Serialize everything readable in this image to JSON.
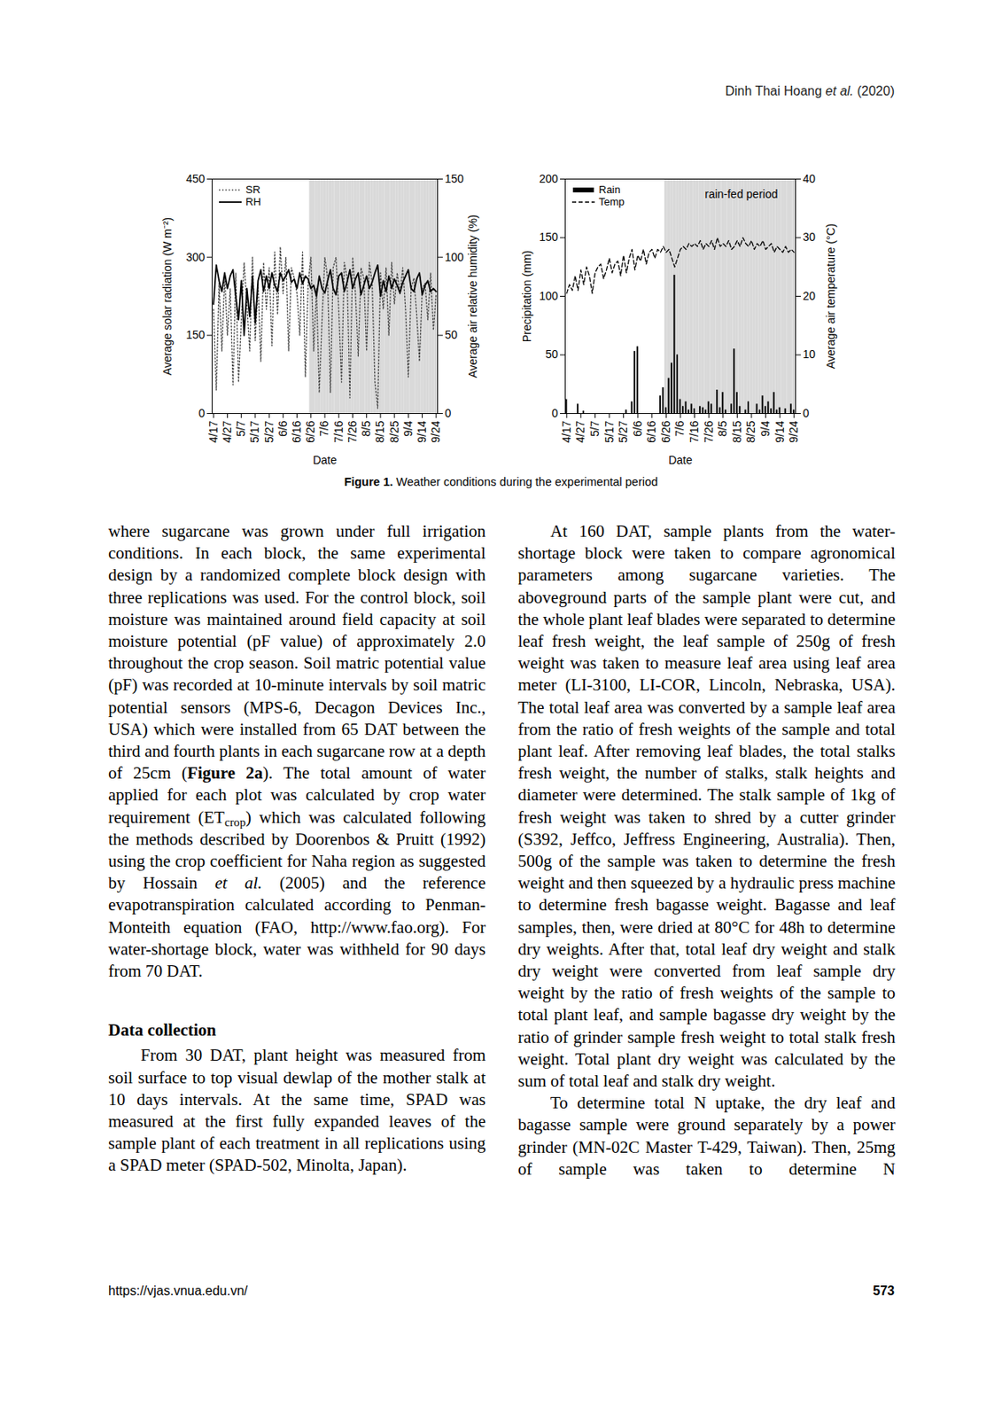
{
  "header": [
    "Dinh Thai Hoang ",
    {
      "italic": "et al."
    },
    " (2020)"
  ],
  "chart_data": [
    {
      "type": "line",
      "x_label": "Date",
      "y_label": "Average solar radiation (W m⁻²)",
      "y2_label": "Average air relative humidity (%)",
      "categories": [
        "4/17",
        null,
        null,
        null,
        null,
        "4/27",
        null,
        null,
        null,
        null,
        "5/7",
        null,
        null,
        null,
        null,
        "5/17",
        null,
        null,
        null,
        null,
        "5/27",
        null,
        null,
        null,
        null,
        "6/6",
        null,
        null,
        null,
        null,
        "6/16",
        null,
        null,
        null,
        null,
        "6/26",
        null,
        null,
        null,
        null,
        "7/6",
        null,
        null,
        null,
        null,
        "7/16",
        null,
        null,
        null,
        null,
        "7/26",
        null,
        null,
        null,
        null,
        "8/5",
        null,
        null,
        null,
        null,
        "8/15",
        null,
        null,
        null,
        null,
        "8/25",
        null,
        null,
        null,
        null,
        "9/4",
        null,
        null,
        null,
        null,
        "9/14",
        null,
        null,
        null,
        null,
        "9/24"
      ],
      "ylim": [
        0,
        450
      ],
      "yticks": [
        0,
        150,
        300,
        450
      ],
      "y2lim": [
        0,
        150
      ],
      "y2ticks": [
        0,
        50,
        100,
        150
      ],
      "legend": "top-left",
      "shaded_region": {
        "from": "6/26",
        "to": "9/24"
      },
      "annotations": [],
      "series": [
        {
          "name": "SR",
          "type": "line",
          "color": "#444444",
          "line_style": "dotted",
          "values": [
            200,
            45,
            250,
            120,
            265,
            150,
            240,
            55,
            270,
            60,
            180,
            290,
            210,
            120,
            300,
            140,
            250,
            100,
            290,
            200,
            280,
            130,
            310,
            190,
            320,
            230,
            300,
            120,
            280,
            260,
            230,
            150,
            310,
            70,
            250,
            300,
            120,
            240,
            40,
            180,
            300,
            260,
            40,
            280,
            300,
            200,
            60,
            290,
            260,
            30,
            300,
            230,
            110,
            280,
            260,
            120,
            290,
            250,
            60,
            10,
            270,
            200,
            280,
            150,
            290,
            210,
            270,
            230,
            280,
            200,
            70,
            240,
            260,
            190,
            100,
            240,
            250,
            180,
            270,
            160,
            230
          ]
        },
        {
          "name": "RH",
          "type": "line",
          "color": "#000000",
          "line_style": "solid",
          "axis": "y2",
          "values": [
            70,
            95,
            85,
            78,
            90,
            80,
            88,
            92,
            75,
            60,
            85,
            50,
            80,
            62,
            88,
            58,
            85,
            92,
            78,
            88,
            80,
            90,
            82,
            78,
            90,
            85,
            88,
            92,
            84,
            86,
            80,
            90,
            83,
            88,
            86,
            80,
            82,
            75,
            88,
            80,
            77,
            85,
            92,
            80,
            76,
            88,
            90,
            78,
            84,
            92,
            80,
            86,
            90,
            76,
            82,
            88,
            80,
            84,
            90,
            95,
            75,
            85,
            78,
            88,
            80,
            86,
            82,
            77,
            84,
            88,
            92,
            80,
            78,
            86,
            90,
            76,
            82,
            85,
            78,
            80,
            78
          ]
        }
      ]
    },
    {
      "type": "bar",
      "x_label": "Date",
      "y_label": "Precipitation (mm)",
      "y2_label": "Average air temperature (°C)",
      "categories": [
        "4/17",
        null,
        null,
        null,
        null,
        "4/27",
        null,
        null,
        null,
        null,
        "5/7",
        null,
        null,
        null,
        null,
        "5/17",
        null,
        null,
        null,
        null,
        "5/27",
        null,
        null,
        null,
        null,
        "6/6",
        null,
        null,
        null,
        null,
        "6/16",
        null,
        null,
        null,
        null,
        "6/26",
        null,
        null,
        null,
        null,
        "7/6",
        null,
        null,
        null,
        null,
        "7/16",
        null,
        null,
        null,
        null,
        "7/26",
        null,
        null,
        null,
        null,
        "8/5",
        null,
        null,
        null,
        null,
        "8/15",
        null,
        null,
        null,
        null,
        "8/25",
        null,
        null,
        null,
        null,
        "9/4",
        null,
        null,
        null,
        null,
        "9/14",
        null,
        null,
        null,
        null,
        "9/24"
      ],
      "ylim": [
        0,
        200
      ],
      "yticks": [
        0,
        50,
        100,
        150,
        200
      ],
      "y2lim": [
        0,
        40
      ],
      "y2ticks": [
        0,
        10,
        20,
        30,
        40
      ],
      "legend": "top-left",
      "shaded_region": {
        "from": "6/26",
        "to": "9/24"
      },
      "annotations": [
        "rain-fed period"
      ],
      "series": [
        {
          "name": "Rain",
          "type": "bar",
          "color": "#000000",
          "values": [
            12,
            0,
            0,
            0,
            8,
            0,
            2,
            0,
            0,
            0,
            0,
            0,
            0,
            0,
            0,
            0,
            0,
            0,
            0,
            0,
            0,
            3,
            0,
            10,
            53,
            57,
            0,
            0,
            0,
            0,
            0,
            0,
            0,
            15,
            22,
            5,
            30,
            43,
            118,
            50,
            12,
            6,
            10,
            3,
            8,
            4,
            0,
            6,
            5,
            3,
            10,
            8,
            0,
            20,
            5,
            18,
            3,
            0,
            8,
            55,
            18,
            6,
            0,
            3,
            10,
            0,
            0,
            8,
            3,
            15,
            6,
            10,
            4,
            18,
            3,
            5,
            0,
            4,
            0,
            8,
            3
          ]
        },
        {
          "name": "Temp",
          "type": "line",
          "color": "#000000",
          "line_style": "dashed",
          "axis": "y2",
          "values": [
            20.5,
            22,
            21,
            23.5,
            21,
            24.5,
            22,
            25,
            23.5,
            20.5,
            24,
            25,
            25.5,
            23,
            24.5,
            26.5,
            24,
            25.5,
            26,
            23.5,
            27,
            24,
            26.5,
            28,
            24.5,
            27,
            26,
            28,
            25.5,
            27.5,
            28,
            26.5,
            28,
            27.5,
            28.5,
            27.5,
            28,
            26.5,
            25,
            26.5,
            28,
            28.5,
            28,
            29,
            28.5,
            29,
            28.5,
            29.5,
            28,
            29,
            28.5,
            29.5,
            28,
            30,
            28.5,
            29,
            28.5,
            29.5,
            28,
            28.5,
            29.5,
            28.5,
            30,
            29,
            28.5,
            29.5,
            28,
            29,
            28.5,
            29.5,
            28,
            28.5,
            29,
            27.5,
            28.5,
            28,
            27.5,
            28.5,
            27.5,
            28,
            27.5
          ]
        }
      ]
    }
  ],
  "caption": [
    {
      "bold": "Figure 1."
    },
    " Weather conditions during the experimental period"
  ],
  "columns": [
    [
      {
        "type": "continuation",
        "runs": [
          "where sugarcane was grown under full irrigation conditions. In each block, the same experimental design by a randomized complete block design with three replications was used. For the control block, soil moisture was maintained around field capacity at soil moisture potential (pF value) of approximately 2.0 throughout the crop season. Soil matric potential value (pF) was recorded at 10-minute intervals by soil matric potential sensors (MPS-6, Decagon Devices Inc., USA) which were installed from 65 DAT between the third and fourth plants in each sugarcane row at a depth of 25cm (",
          {
            "bold": "Figure 2a"
          },
          "). The total amount of water applied for each plot was calculated by crop water requirement (ET",
          {
            "sub": "crop"
          },
          ") which was calculated following the methods described by Doorenbos & Pruitt (1992) using the crop coefficient for Naha region as suggested by Hossain ",
          {
            "italic": "et al."
          },
          " (2005) and the reference evapotranspiration calculated according to Penman-Monteith equation (FAO, http://www.fao.org). For water-shortage block, water was withheld for 90 days from 70 DAT."
        ]
      },
      {
        "type": "heading",
        "runs": [
          "Data collection"
        ]
      },
      {
        "type": "paragraph",
        "runs": [
          "From 30 DAT, plant height was measured from soil surface to top visual dewlap of the mother stalk at 10 days intervals. At the same time, SPAD was measured at the first fully expanded leaves of the sample plant of each treatment in all replications using a SPAD meter (SPAD-502, Minolta, Japan)."
        ]
      }
    ],
    [
      {
        "type": "paragraph",
        "runs": [
          "At 160 DAT, sample plants from the water-shortage block were taken to compare agronomical parameters among sugarcane varieties. The aboveground parts of the sample plant were cut, and the whole plant leaf blades were separated to determine leaf fresh weight, the leaf sample of 250g of fresh weight was taken to measure leaf area using leaf area meter (LI-3100, LI-COR, Lincoln, Nebraska, USA). The total leaf area was converted by a sample leaf area from the ratio of fresh weights of the sample and total plant leaf. After removing leaf blades, the total stalks fresh weight, the number of stalks, stalk heights and diameter were determined. The stalk sample of 1kg of fresh weight was taken to shred by a cutter grinder (S392, Jeffco, Jeffress Engineering, Australia). Then, 500g of the sample was taken to determine the fresh weight and then squeezed by a hydraulic press machine to determine fresh bagasse weight. Bagasse and leaf samples, then, were dried at 80°C for 48h to determine dry weights. After that, total leaf dry weight and stalk dry weight were converted from leaf sample dry weight by the ratio of fresh weights of the sample to total plant leaf, and sample bagasse dry weight by the ratio of grinder sample fresh weight to total stalk fresh weight. Total plant dry weight was calculated by the sum of total leaf and stalk dry weight."
        ]
      },
      {
        "type": "paragraph",
        "runs": [
          "To determine total N uptake, the dry leaf and bagasse sample were ground separately by a power grinder (MN-02C Master T-429, Taiwan). Then, 25mg of sample was taken to determine N"
        ]
      }
    ]
  ],
  "footer": {
    "url": "https://vjas.vnua.edu.vn/",
    "page": "573"
  }
}
